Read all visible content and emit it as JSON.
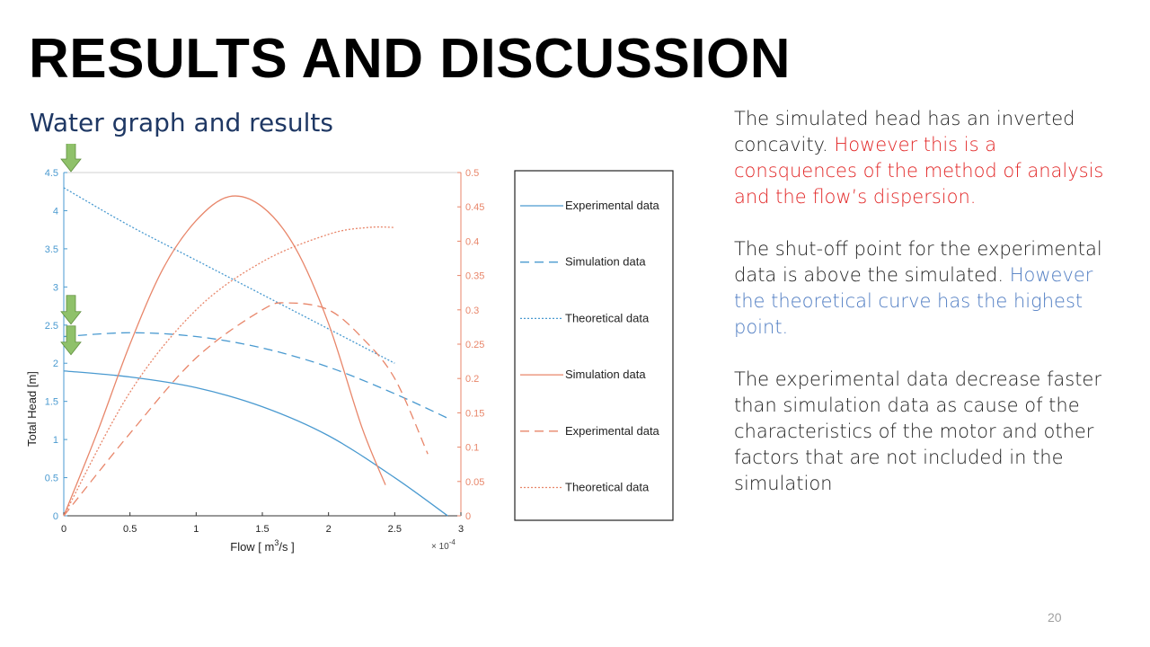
{
  "slide": {
    "title": "RESULTS AND DISCUSSION",
    "subtitle": "Water graph and results",
    "page_number": "20"
  },
  "text": {
    "p1_black": "The simulated head has an inverted concavity. ",
    "p1_red": "However this is a consquences of the method of analysis and the flow’s dispersion.",
    "p2_black": "The shut-off point for the experimental data is above the simulated. ",
    "p2_blue": "However the theoretical curve has the highest point.",
    "p3_black": "The experimental data decrease faster than simulation data as cause of the characteristics of the motor and other factors that are not included in the simulation"
  },
  "colors": {
    "blue": "#4a9ad0",
    "orange": "#e8866a",
    "red_text": "#e22727",
    "blue_text": "#4f7cc2",
    "arrow": "#8fc16a"
  },
  "chart_data": {
    "type": "line",
    "xlabel_prefix": "Flow  [ m",
    "xlabel_sup": "3",
    "xlabel_suffix": "/s ]",
    "x_multiplier_base": "× 10",
    "x_multiplier_exp": "-4",
    "ylabel_left": "Total Head [m]",
    "xlim": [
      0,
      3
    ],
    "ylim_left": [
      0,
      4.5
    ],
    "ylim_right": [
      0,
      0.5
    ],
    "x_ticks": [
      "0",
      "0.5",
      "1",
      "1.5",
      "2",
      "2.5",
      "3"
    ],
    "y_left_ticks": [
      "0",
      "0.5",
      "1",
      "1.5",
      "2",
      "2.5",
      "3",
      "3.5",
      "4",
      "4.5"
    ],
    "y_right_ticks": [
      "0",
      "0.05",
      "0.1",
      "0.15",
      "0.2",
      "0.25",
      "0.3",
      "0.35",
      "0.4",
      "0.45",
      "0.5"
    ],
    "series": [
      {
        "name": "Experimental data",
        "axis": "left",
        "color": "blue",
        "style": "solid",
        "x": [
          0,
          0.5,
          1.0,
          1.5,
          2.0,
          2.5,
          2.9
        ],
        "y": [
          1.9,
          1.82,
          1.68,
          1.43,
          1.05,
          0.5,
          0
        ]
      },
      {
        "name": "Simulation data",
        "axis": "left",
        "color": "blue",
        "style": "dashed",
        "x": [
          0,
          0.5,
          1.0,
          1.5,
          2.0,
          2.5,
          2.9
        ],
        "y": [
          2.35,
          2.4,
          2.35,
          2.2,
          1.95,
          1.6,
          1.28
        ]
      },
      {
        "name": "Theoretical data",
        "axis": "left",
        "color": "blue",
        "style": "dotted",
        "x": [
          0,
          0.5,
          1.0,
          1.5,
          2.0,
          2.5
        ],
        "y": [
          4.3,
          3.8,
          3.35,
          2.9,
          2.45,
          2.0
        ]
      },
      {
        "name": "Simulation data",
        "axis": "right",
        "color": "orange",
        "style": "solid",
        "x": [
          0,
          0.25,
          0.5,
          0.75,
          1.0,
          1.25,
          1.5,
          1.75,
          2.0,
          2.25,
          2.43
        ],
        "y": [
          0,
          0.12,
          0.25,
          0.36,
          0.43,
          0.465,
          0.45,
          0.39,
          0.28,
          0.13,
          0.045
        ]
      },
      {
        "name": "Experimental data",
        "axis": "right",
        "color": "orange",
        "style": "dashed",
        "x": [
          0,
          0.5,
          1.0,
          1.5,
          1.7,
          2.0,
          2.25,
          2.5,
          2.75
        ],
        "y": [
          0,
          0.12,
          0.23,
          0.3,
          0.31,
          0.3,
          0.26,
          0.2,
          0.09
        ]
      },
      {
        "name": "Theoretical data",
        "axis": "right",
        "color": "orange",
        "style": "dotted",
        "x": [
          0,
          0.5,
          1.0,
          1.5,
          2.0,
          2.3,
          2.5
        ],
        "y": [
          0,
          0.18,
          0.3,
          0.37,
          0.41,
          0.42,
          0.42
        ]
      }
    ],
    "legend": [
      "Experimental data",
      "Simulation data",
      "Theoretical data",
      "Simulation data",
      "Experimental data",
      "Theoretical data"
    ],
    "markers": [
      {
        "y_left": 4.5
      },
      {
        "y_left": 2.5
      },
      {
        "y_left": 2.1
      }
    ]
  }
}
